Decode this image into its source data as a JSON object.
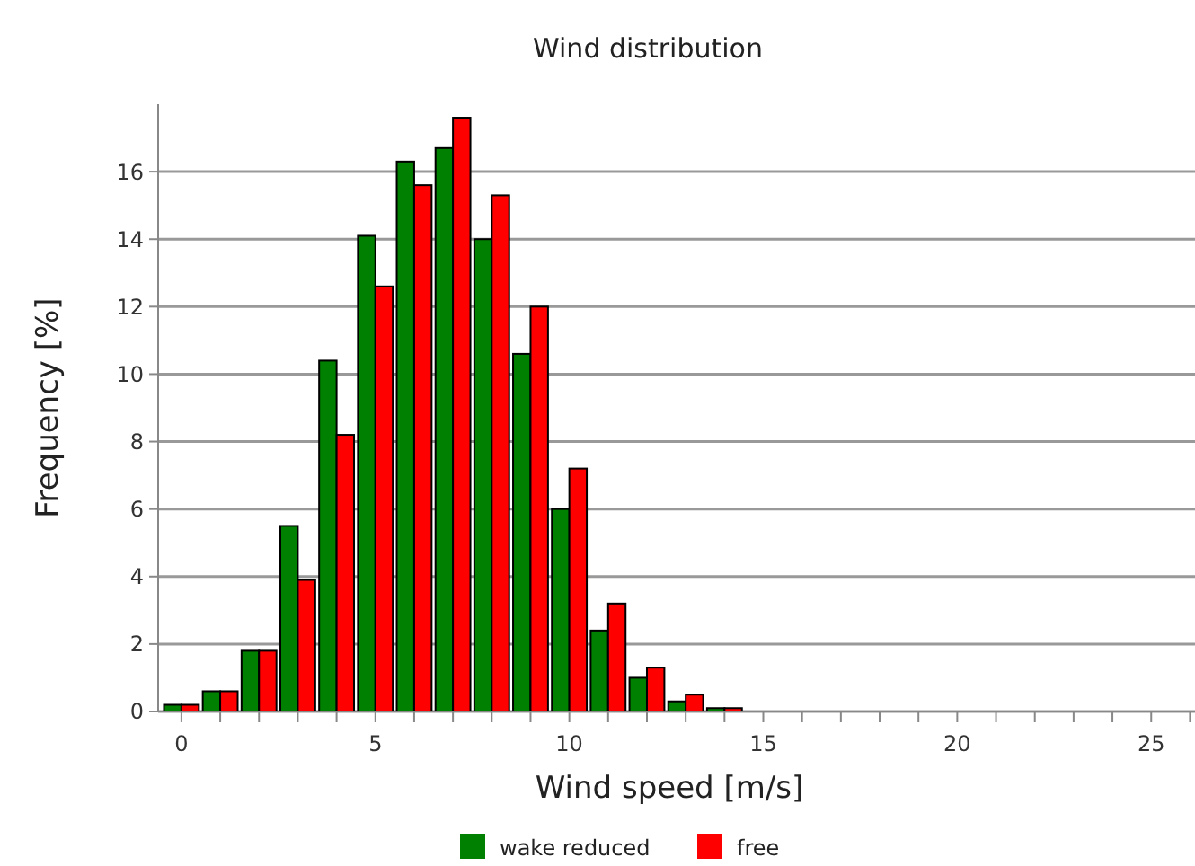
{
  "chart_data": {
    "type": "bar",
    "title": "Wind distribution",
    "xlabel": "Wind speed [m/s]",
    "ylabel": "Frequency [%]",
    "x": [
      0,
      1,
      2,
      3,
      4,
      5,
      6,
      7,
      8,
      9,
      10,
      11,
      12,
      13,
      14
    ],
    "series": [
      {
        "name": "wake reduced",
        "color": "#008000",
        "values": [
          0.2,
          0.6,
          1.8,
          5.5,
          10.4,
          14.1,
          16.3,
          16.7,
          14.0,
          10.6,
          6.0,
          2.4,
          1.0,
          0.3,
          0.1
        ]
      },
      {
        "name": "free",
        "color": "#ff0000",
        "values": [
          0.2,
          0.6,
          1.8,
          3.9,
          8.2,
          12.6,
          15.6,
          17.6,
          15.3,
          12.0,
          7.2,
          3.2,
          1.3,
          0.5,
          0.1
        ]
      }
    ],
    "xlim": [
      -0.6,
      26.5
    ],
    "xticks": [
      0,
      {
        "value": 1,
        "label": null
      },
      {
        "value": 2,
        "label": null
      },
      {
        "value": 3,
        "label": null
      },
      {
        "value": 4,
        "label": null
      },
      5,
      {
        "value": 6,
        "label": null
      },
      {
        "value": 7,
        "label": null
      },
      {
        "value": 8,
        "label": null
      },
      {
        "value": 9,
        "label": null
      },
      10,
      {
        "value": 11,
        "label": null
      },
      {
        "value": 12,
        "label": null
      },
      {
        "value": 13,
        "label": null
      },
      {
        "value": 14,
        "label": null
      },
      15,
      {
        "value": 16,
        "label": null
      },
      {
        "value": 17,
        "label": null
      },
      {
        "value": 18,
        "label": null
      },
      {
        "value": 19,
        "label": null
      },
      20,
      {
        "value": 21,
        "label": null
      },
      {
        "value": 22,
        "label": null
      },
      {
        "value": 23,
        "label": null
      },
      {
        "value": 24,
        "label": null
      },
      25,
      {
        "value": 26,
        "label": null
      }
    ],
    "ylim": [
      0,
      18
    ],
    "yticks": [
      0,
      2,
      4,
      6,
      8,
      10,
      12,
      14,
      16
    ],
    "grid": "y",
    "legend": "bottom"
  }
}
